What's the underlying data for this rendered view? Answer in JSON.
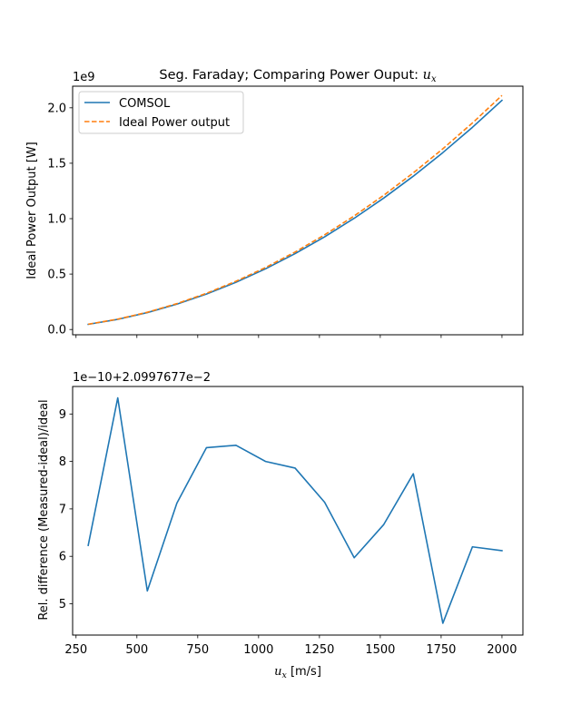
{
  "chart_data": [
    {
      "type": "line",
      "title": "Seg. Faraday; Comparing Power Ouput: ",
      "title_math": "u",
      "title_math_sub": "x",
      "ylabel": "Ideal Power Output [W]",
      "offset_text": "1e9",
      "xlim": [
        236,
        2086
      ],
      "ylim": [
        -0.0475,
        2.195
      ],
      "x_ticks": [
        250,
        500,
        750,
        1000,
        1250,
        1500,
        1750,
        2000
      ],
      "y_ticks": [
        0.0,
        0.5,
        1.0,
        1.5,
        2.0
      ],
      "y_tick_labels": [
        "0.0",
        "0.5",
        "1.0",
        "1.5",
        "2.0"
      ],
      "legend_position": "top-left",
      "series": [
        {
          "name": "COMSOL",
          "color": "#1f77b4",
          "style": "solid",
          "x": [
            300,
            421.4,
            542.9,
            664.3,
            785.7,
            907.1,
            1028.6,
            1150,
            1271.4,
            1392.9,
            1514.3,
            1635.7,
            1757.1,
            1878.6,
            2000
          ],
          "y": [
            0.0465,
            0.0917,
            0.1524,
            0.2284,
            0.3195,
            0.4259,
            0.5474,
            0.6842,
            0.8361,
            1.0033,
            1.1857,
            1.3832,
            1.596,
            1.824,
            2.0671
          ]
        },
        {
          "name": "Ideal Power output",
          "color": "#ff7f0e",
          "style": "dashed",
          "x": [
            300,
            421.4,
            542.9,
            664.3,
            785.7,
            907.1,
            1028.6,
            1150,
            1271.4,
            1392.9,
            1514.3,
            1635.7,
            1757.1,
            1878.6,
            2000
          ],
          "y": [
            0.0475,
            0.0937,
            0.1556,
            0.2333,
            0.3264,
            0.4351,
            0.5592,
            0.6989,
            0.8541,
            1.0248,
            1.2111,
            1.4129,
            1.6302,
            1.8631,
            2.1115
          ]
        }
      ]
    },
    {
      "type": "line",
      "ylabel": "Rel. difference (Measured-ideal)/ideal",
      "xlabel_math": "u",
      "xlabel_math_sub": "x",
      "xlabel_unit": " [m/s]",
      "offset_text": "1e−10+2.0997677e−2",
      "xlim": [
        236,
        2086
      ],
      "ylim": [
        4.34,
        9.58
      ],
      "x_ticks": [
        250,
        500,
        750,
        1000,
        1250,
        1500,
        1750,
        2000
      ],
      "x_tick_labels": [
        "250",
        "500",
        "750",
        "1000",
        "1250",
        "1500",
        "1750",
        "2000"
      ],
      "y_ticks": [
        5,
        6,
        7,
        8,
        9
      ],
      "y_tick_labels": [
        "5",
        "6",
        "7",
        "8",
        "9"
      ],
      "series": [
        {
          "color": "#1f77b4",
          "style": "solid",
          "x": [
            300,
            421.4,
            542.9,
            664.3,
            785.7,
            907.1,
            1028.6,
            1150,
            1271.4,
            1392.9,
            1514.3,
            1635.7,
            1757.1,
            1878.6,
            2000
          ],
          "y": [
            6.23,
            9.34,
            5.27,
            7.12,
            8.29,
            8.34,
            8.0,
            7.86,
            7.14,
            5.97,
            6.67,
            7.74,
            4.59,
            6.2,
            6.12
          ]
        }
      ]
    }
  ]
}
